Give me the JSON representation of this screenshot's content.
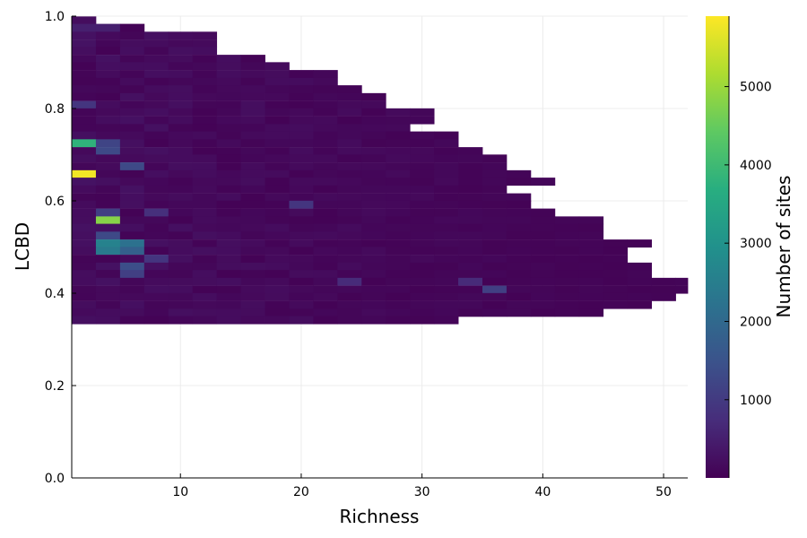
{
  "chart_data": {
    "type": "heatmap",
    "title": "",
    "xlabel": "Richness",
    "ylabel": "LCBD",
    "xlim": [
      1,
      52
    ],
    "ylim": [
      0.0,
      1.0
    ],
    "x_ticks": [
      10,
      20,
      30,
      40,
      50
    ],
    "y_ticks": [
      0.0,
      0.2,
      0.4,
      0.6,
      0.8,
      1.0
    ],
    "x_tick_labels": [
      "10",
      "20",
      "30",
      "40",
      "50"
    ],
    "y_tick_labels": [
      "0.0",
      "0.2",
      "0.4",
      "0.6",
      "0.8",
      "1.0"
    ],
    "grid": true,
    "bin_width_x": 2,
    "bin_width_y": 0.0166,
    "colorbar": {
      "label": "Number of sites",
      "min": 1,
      "max": 5900,
      "ticks": [
        1000,
        2000,
        3000,
        4000,
        5000
      ],
      "tick_labels": [
        "1000",
        "2000",
        "3000",
        "4000",
        "5000"
      ],
      "colormap": "viridis"
    },
    "row_extents": [
      {
        "y": 0.991,
        "x_max": 2
      },
      {
        "y": 0.975,
        "x_max": 6
      },
      {
        "y": 0.958,
        "x_max": 12
      },
      {
        "y": 0.941,
        "x_max": 12
      },
      {
        "y": 0.925,
        "x_max": 12
      },
      {
        "y": 0.908,
        "x_max": 16
      },
      {
        "y": 0.892,
        "x_max": 18
      },
      {
        "y": 0.875,
        "x_max": 22
      },
      {
        "y": 0.858,
        "x_max": 22
      },
      {
        "y": 0.842,
        "x_max": 24
      },
      {
        "y": 0.825,
        "x_max": 26
      },
      {
        "y": 0.808,
        "x_max": 26
      },
      {
        "y": 0.792,
        "x_max": 30
      },
      {
        "y": 0.775,
        "x_max": 30
      },
      {
        "y": 0.758,
        "x_max": 28
      },
      {
        "y": 0.742,
        "x_max": 32
      },
      {
        "y": 0.725,
        "x_max": 32
      },
      {
        "y": 0.708,
        "x_max": 34
      },
      {
        "y": 0.692,
        "x_max": 36
      },
      {
        "y": 0.675,
        "x_max": 36
      },
      {
        "y": 0.658,
        "x_max": 38
      },
      {
        "y": 0.642,
        "x_max": 40
      },
      {
        "y": 0.625,
        "x_max": 36
      },
      {
        "y": 0.608,
        "x_max": 38
      },
      {
        "y": 0.592,
        "x_max": 38
      },
      {
        "y": 0.575,
        "x_max": 40
      },
      {
        "y": 0.558,
        "x_max": 44
      },
      {
        "y": 0.542,
        "x_max": 44
      },
      {
        "y": 0.525,
        "x_max": 44
      },
      {
        "y": 0.508,
        "x_max": 48
      },
      {
        "y": 0.492,
        "x_max": 46
      },
      {
        "y": 0.475,
        "x_max": 46
      },
      {
        "y": 0.458,
        "x_max": 48
      },
      {
        "y": 0.442,
        "x_max": 48
      },
      {
        "y": 0.425,
        "x_max": 52
      },
      {
        "y": 0.408,
        "x_max": 52
      },
      {
        "y": 0.392,
        "x_max": 50
      },
      {
        "y": 0.375,
        "x_max": 48
      },
      {
        "y": 0.358,
        "x_max": 44
      },
      {
        "y": 0.342,
        "x_max": 32
      }
    ],
    "notable_cells": [
      {
        "x": 2,
        "y": 0.658,
        "count": 5800
      },
      {
        "x": 2,
        "y": 0.725,
        "count": 3800
      },
      {
        "x": 4,
        "y": 0.558,
        "count": 4800
      },
      {
        "x": 4,
        "y": 0.508,
        "count": 2600
      },
      {
        "x": 4,
        "y": 0.492,
        "count": 2400
      },
      {
        "x": 4,
        "y": 0.525,
        "count": 1300
      },
      {
        "x": 4,
        "y": 0.708,
        "count": 1300
      },
      {
        "x": 4,
        "y": 0.725,
        "count": 1200
      },
      {
        "x": 4,
        "y": 0.575,
        "count": 1100
      },
      {
        "x": 6,
        "y": 0.508,
        "count": 2200
      },
      {
        "x": 6,
        "y": 0.492,
        "count": 1800
      },
      {
        "x": 6,
        "y": 0.458,
        "count": 1400
      },
      {
        "x": 6,
        "y": 0.675,
        "count": 1300
      },
      {
        "x": 6,
        "y": 0.442,
        "count": 1100
      },
      {
        "x": 2,
        "y": 0.808,
        "count": 900
      },
      {
        "x": 8,
        "y": 0.475,
        "count": 900
      },
      {
        "x": 8,
        "y": 0.575,
        "count": 800
      },
      {
        "x": 20,
        "y": 0.592,
        "count": 900
      },
      {
        "x": 36,
        "y": 0.408,
        "count": 1100
      },
      {
        "x": 34,
        "y": 0.425,
        "count": 700
      },
      {
        "x": 24,
        "y": 0.425,
        "count": 700
      },
      {
        "x": 2,
        "y": 0.975,
        "count": 500
      },
      {
        "x": 4,
        "y": 0.975,
        "count": 500
      }
    ]
  }
}
